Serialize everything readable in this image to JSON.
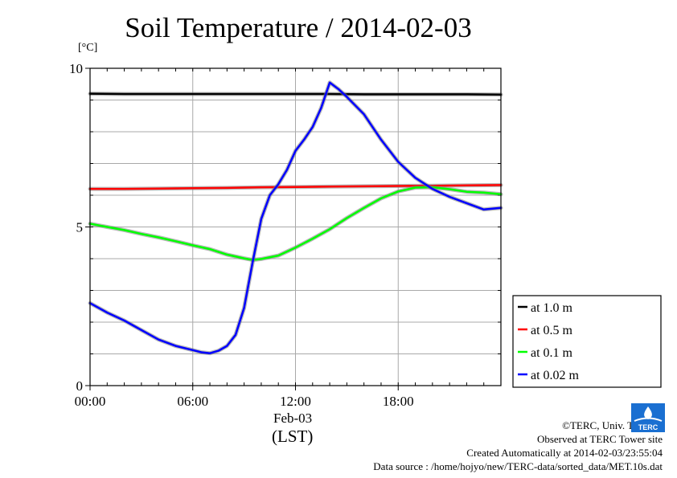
{
  "chart_data": {
    "type": "line",
    "title": "Soil Temperature / 2014-02-03",
    "ylabel": "[°C]",
    "xlabel": "(LST)",
    "date_label": "Feb-03",
    "x_unit": "hour of day (LST)",
    "xlim": [
      0,
      24
    ],
    "ylim": [
      0,
      10
    ],
    "x_ticks": [
      {
        "value": 0,
        "label": "00:00"
      },
      {
        "value": 6,
        "label": "06:00"
      },
      {
        "value": 12,
        "label": "12:00"
      },
      {
        "value": 18,
        "label": "18:00"
      }
    ],
    "y_ticks": [
      {
        "value": 0,
        "label": "0"
      },
      {
        "value": 5,
        "label": "5"
      },
      {
        "value": 10,
        "label": "10"
      }
    ],
    "grid": true,
    "legend_position": "right",
    "series": [
      {
        "name": "at 1.0 m",
        "color": "#000000",
        "x": [
          0,
          2,
          4,
          6,
          8,
          10,
          12,
          14,
          16,
          18,
          20,
          22,
          24
        ],
        "y": [
          9.2,
          9.19,
          9.19,
          9.19,
          9.19,
          9.19,
          9.19,
          9.19,
          9.18,
          9.18,
          9.18,
          9.18,
          9.17
        ]
      },
      {
        "name": "at 0.5 m",
        "color": "#ff0000",
        "x": [
          0,
          2,
          4,
          6,
          8,
          10,
          12,
          14,
          16,
          18,
          20,
          22,
          24
        ],
        "y": [
          6.2,
          6.2,
          6.21,
          6.22,
          6.23,
          6.25,
          6.26,
          6.27,
          6.28,
          6.29,
          6.3,
          6.31,
          6.32
        ]
      },
      {
        "name": "at 0.1 m",
        "color": "#00ff00",
        "x": [
          0,
          1,
          2,
          3,
          4,
          5,
          6,
          7,
          8,
          9,
          9.5,
          10,
          11,
          12,
          13,
          14,
          15,
          16,
          17,
          18,
          19,
          20,
          21,
          22,
          23,
          24
        ],
        "y": [
          5.1,
          5.0,
          4.9,
          4.78,
          4.67,
          4.55,
          4.42,
          4.3,
          4.13,
          4.01,
          3.96,
          3.99,
          4.1,
          4.35,
          4.63,
          4.93,
          5.28,
          5.6,
          5.9,
          6.12,
          6.24,
          6.25,
          6.19,
          6.11,
          6.08,
          6.03
        ]
      },
      {
        "name": "at 0.02 m",
        "color": "#0000ff",
        "x": [
          0,
          1,
          2,
          3,
          4,
          5,
          6,
          6.5,
          7,
          7.5,
          8,
          8.5,
          9,
          9.5,
          10,
          10.5,
          11,
          11.5,
          12,
          12.5,
          13,
          13.5,
          14,
          14.5,
          15,
          16,
          17,
          18,
          19,
          20,
          21,
          22,
          23,
          24
        ],
        "y": [
          2.6,
          2.3,
          2.05,
          1.75,
          1.45,
          1.25,
          1.12,
          1.05,
          1.02,
          1.1,
          1.25,
          1.6,
          2.45,
          3.9,
          5.25,
          6.0,
          6.35,
          6.8,
          7.4,
          7.75,
          8.15,
          8.75,
          9.55,
          9.35,
          9.1,
          8.55,
          7.75,
          7.05,
          6.55,
          6.2,
          5.95,
          5.75,
          5.55,
          5.6
        ]
      }
    ]
  },
  "footer": {
    "copyright": "©TERC, Univ. Tsukuba",
    "observed": "Observed at TERC Tower site",
    "created": "Created Automatically at 2014-02-03/23:55:04",
    "source": "Data source : /home/hojyo/new/TERC-data/sorted_data/MET.10s.dat"
  },
  "logo": {
    "text": "TERC",
    "color": "#1a6fd1"
  }
}
